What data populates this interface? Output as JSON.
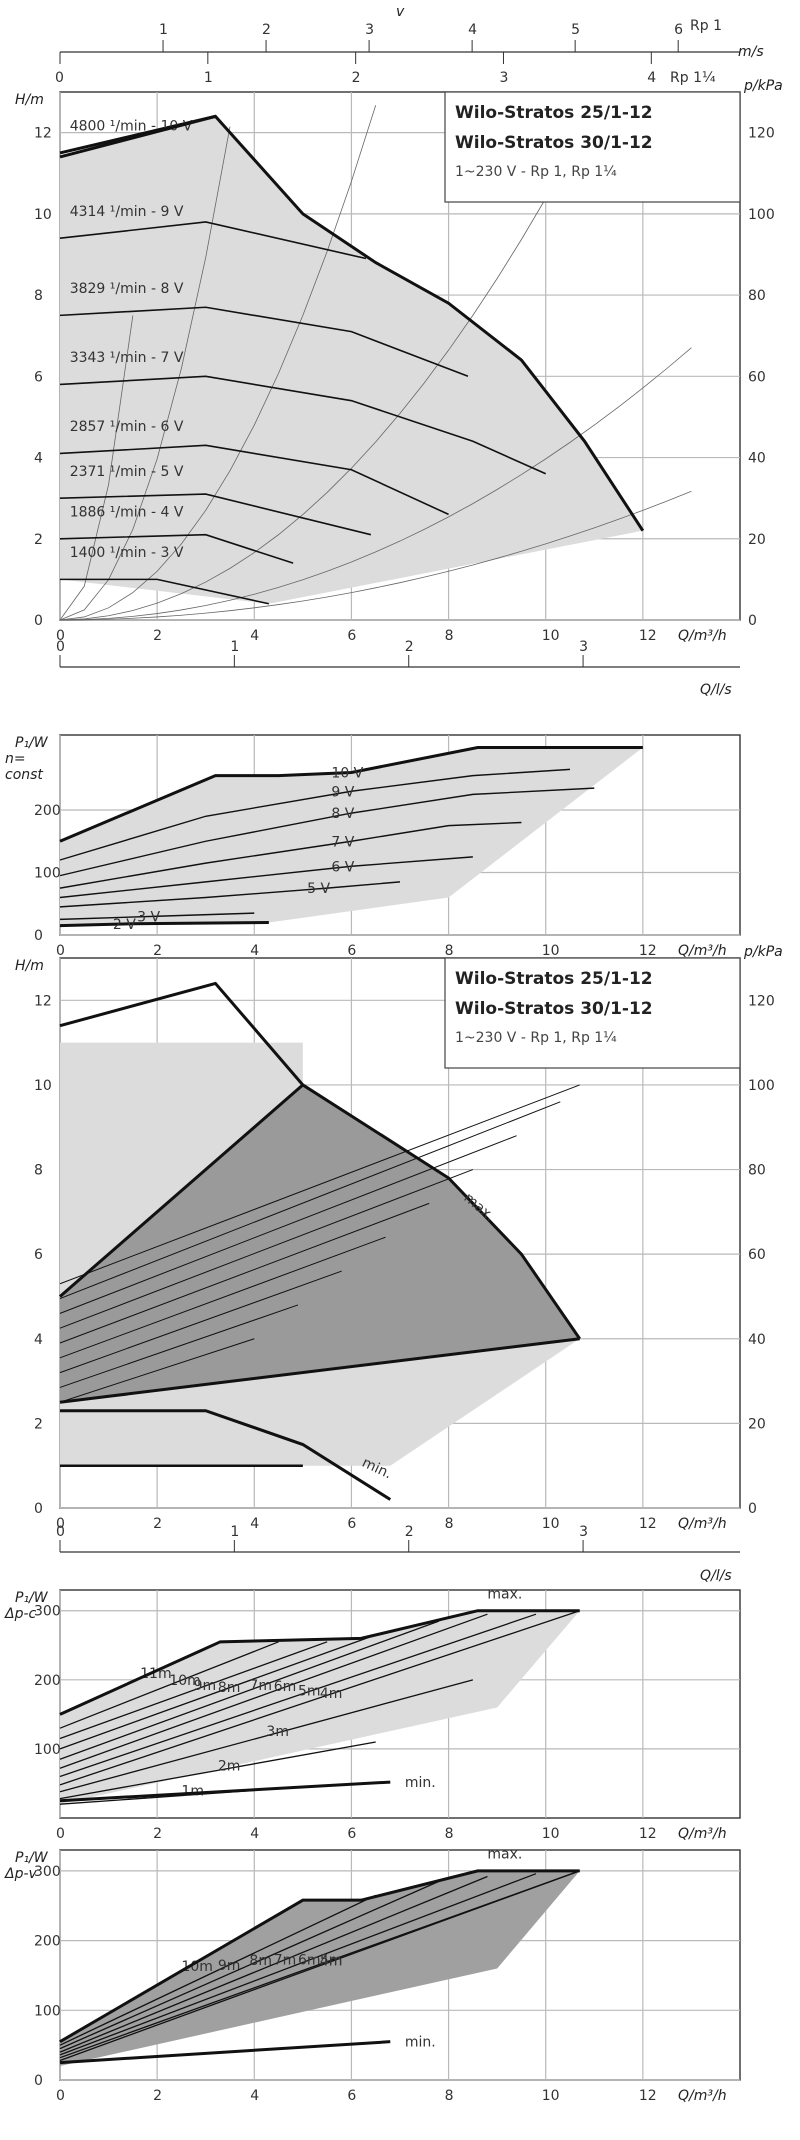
{
  "pump": {
    "title1": "Wilo-Stratos 25/1-12",
    "title2": "Wilo-Stratos 30/1-12",
    "subtitle": "1~230 V - Rp 1, Rp 1¼"
  },
  "top_scales": {
    "v_label": "v",
    "v_unit": "m/s",
    "rp1_label": "Rp 1",
    "rp114_label": "Rp 1¼",
    "rp1_ticks": [
      "1",
      "2",
      "3",
      "4",
      "5",
      "6"
    ],
    "rp114_ticks": [
      "0",
      "1",
      "2",
      "3",
      "4"
    ],
    "top_zero": "0"
  },
  "panel_ls_1": {
    "label": "Q/l/s",
    "ticks": [
      "0",
      "1",
      "2",
      "3"
    ]
  },
  "panel_ls_2": {
    "label": "Q/l/s",
    "ticks": [
      "0",
      "1",
      "2",
      "3"
    ]
  },
  "chart_data": [
    {
      "id": "head_n_const",
      "type": "line",
      "xlabel": "Q/m³/h",
      "ylabel": "H/m",
      "y2label": "p/kPa",
      "xlim": [
        0,
        14
      ],
      "ylim": [
        0,
        13
      ],
      "xticks": [
        "0",
        "2",
        "4",
        "6",
        "8",
        "10",
        "12"
      ],
      "yticks": [
        "0",
        "2",
        "4",
        "6",
        "8",
        "10",
        "12"
      ],
      "y2ticks": [
        "0",
        "20",
        "40",
        "60",
        "80",
        "100",
        "120"
      ],
      "series": [
        {
          "name": "4800 ¹/min - 10 V",
          "x": [
            0,
            3.2
          ],
          "y": [
            11.5,
            12.4
          ]
        },
        {
          "name": "4314 ¹/min - 9 V",
          "x": [
            0,
            3,
            6.3
          ],
          "y": [
            9.4,
            9.8,
            8.9
          ]
        },
        {
          "name": "3829 ¹/min - 8 V",
          "x": [
            0,
            3,
            6,
            8.4
          ],
          "y": [
            7.5,
            7.7,
            7.1,
            6.0
          ]
        },
        {
          "name": "3343 ¹/min - 7 V",
          "x": [
            0,
            3,
            6,
            8.5,
            10
          ],
          "y": [
            5.8,
            6.0,
            5.4,
            4.4,
            3.6
          ]
        },
        {
          "name": "2857 ¹/min - 6 V",
          "x": [
            0,
            3,
            6,
            8
          ],
          "y": [
            4.1,
            4.3,
            3.7,
            2.6
          ]
        },
        {
          "name": "2371 ¹/min - 5 V",
          "x": [
            0,
            3,
            6.4
          ],
          "y": [
            3.0,
            3.1,
            2.1
          ]
        },
        {
          "name": "1886 ¹/min - 4 V",
          "x": [
            0,
            3,
            4.8
          ],
          "y": [
            2.0,
            2.1,
            1.4
          ]
        },
        {
          "name": "1400 ¹/min - 3 V",
          "x": [
            0,
            2,
            4.3
          ],
          "y": [
            1.0,
            1.0,
            0.4
          ]
        }
      ],
      "max_curve": {
        "x": [
          0,
          3.2,
          5.0,
          6.5,
          8.0,
          9.5,
          10.8,
          12
        ],
        "y": [
          11.4,
          12.4,
          10.0,
          8.8,
          7.8,
          6.4,
          4.4,
          2.2
        ]
      }
    },
    {
      "id": "power_n_const",
      "type": "line",
      "xlabel": "Q/m³/h",
      "ylabel": "P₁/W",
      "ylabel2": "n=",
      "ylabel3": "const",
      "xlim": [
        0,
        14
      ],
      "ylim": [
        0,
        320
      ],
      "xticks": [
        "0",
        "2",
        "4",
        "6",
        "8",
        "10",
        "12"
      ],
      "yticks": [
        "0",
        "100",
        "200"
      ],
      "series": [
        {
          "name": "10 V",
          "x": [
            0,
            3.2,
            4.5,
            6,
            8.6,
            12
          ],
          "y": [
            150,
            255,
            255,
            260,
            300,
            300
          ]
        },
        {
          "name": "9 V",
          "x": [
            0,
            3,
            6,
            8.5,
            10.5
          ],
          "y": [
            120,
            190,
            230,
            255,
            265
          ]
        },
        {
          "name": "8 V",
          "x": [
            0,
            3,
            6,
            8.5,
            11
          ],
          "y": [
            95,
            150,
            195,
            225,
            235
          ]
        },
        {
          "name": "7 V",
          "x": [
            0,
            3,
            6,
            8,
            9.5
          ],
          "y": [
            75,
            115,
            150,
            175,
            180
          ]
        },
        {
          "name": "6 V",
          "x": [
            0,
            3,
            6,
            8.5
          ],
          "y": [
            60,
            85,
            110,
            125
          ]
        },
        {
          "name": "5 V",
          "x": [
            0,
            3,
            5.5,
            7
          ],
          "y": [
            45,
            60,
            75,
            85
          ]
        },
        {
          "name": "3 V",
          "x": [
            0,
            2,
            4
          ],
          "y": [
            25,
            30,
            35
          ]
        },
        {
          "name": "2 V",
          "x": [
            0,
            1.5,
            4.3
          ],
          "y": [
            15,
            18,
            20
          ]
        }
      ]
    },
    {
      "id": "head_dp_modes",
      "type": "area",
      "xlabel": "Q/m³/h",
      "ylabel": "H/m",
      "y2label": "p/kPa",
      "xlim": [
        0,
        14
      ],
      "ylim": [
        0,
        13
      ],
      "xticks": [
        "0",
        "2",
        "4",
        "6",
        "8",
        "10",
        "12"
      ],
      "yticks": [
        "0",
        "2",
        "4",
        "6",
        "8",
        "10",
        "12"
      ],
      "y2ticks": [
        "0",
        "20",
        "40",
        "60",
        "80",
        "100",
        "120"
      ],
      "annotations": [
        "max.",
        "min."
      ],
      "max_curve": {
        "x": [
          0,
          3.2,
          5.0,
          6.5,
          8.0,
          9.5,
          10.7
        ],
        "y": [
          11.4,
          12.4,
          10.0,
          8.9,
          7.8,
          6.0,
          4.0
        ]
      },
      "min_curve": {
        "x": [
          0,
          3,
          5,
          6.8
        ],
        "y": [
          2.3,
          2.3,
          1.5,
          0.2
        ]
      },
      "dpv_max": {
        "x": [
          0,
          5.0
        ],
        "y": [
          5.0,
          10.0
        ]
      },
      "dpv_min": {
        "x": [
          0,
          10.7
        ],
        "y": [
          2.5,
          4.0
        ]
      }
    },
    {
      "id": "power_dp_c",
      "type": "line",
      "xlabel": "Q/m³/h",
      "ylabel": "P₁/W",
      "ylabel2": "Δp-c",
      "xlim": [
        0,
        14
      ],
      "ylim": [
        0,
        330
      ],
      "xticks": [
        "0",
        "2",
        "4",
        "6",
        "8",
        "10",
        "12"
      ],
      "yticks": [
        "100",
        "200",
        "300"
      ],
      "annotations": [
        "max.",
        "min."
      ],
      "series": [
        {
          "name": "11m",
          "x": [
            0,
            3.3
          ],
          "y": [
            150,
            255
          ]
        },
        {
          "name": "10m",
          "x": [
            0,
            4.5
          ],
          "y": [
            130,
            255
          ]
        },
        {
          "name": "9m",
          "x": [
            0,
            5.5
          ],
          "y": [
            115,
            255
          ]
        },
        {
          "name": "8m",
          "x": [
            0,
            6.5
          ],
          "y": [
            100,
            265
          ]
        },
        {
          "name": "7m",
          "x": [
            0,
            7.8
          ],
          "y": [
            85,
            285
          ]
        },
        {
          "name": "6m",
          "x": [
            0,
            8.8
          ],
          "y": [
            72,
            295
          ]
        },
        {
          "name": "5m",
          "x": [
            0,
            9.8
          ],
          "y": [
            60,
            295
          ]
        },
        {
          "name": "4m",
          "x": [
            0,
            10.7
          ],
          "y": [
            48,
            300
          ]
        },
        {
          "name": "3m",
          "x": [
            0,
            8.5
          ],
          "y": [
            38,
            200
          ]
        },
        {
          "name": "2m",
          "x": [
            0,
            6.5
          ],
          "y": [
            28,
            110
          ]
        },
        {
          "name": "1m",
          "x": [
            0,
            5
          ],
          "y": [
            20,
            45
          ]
        }
      ],
      "max_curve": {
        "x": [
          0,
          3.3,
          6.2,
          8.6,
          10.7
        ],
        "y": [
          150,
          255,
          260,
          300,
          300
        ]
      },
      "min_curve": {
        "x": [
          0,
          6.8
        ],
        "y": [
          25,
          52
        ]
      }
    },
    {
      "id": "power_dp_v",
      "type": "line",
      "xlabel": "Q/m³/h",
      "ylabel": "P₁/W",
      "ylabel2": "Δp-v",
      "xlim": [
        0,
        14
      ],
      "ylim": [
        0,
        330
      ],
      "xticks": [
        "0",
        "2",
        "4",
        "6",
        "8",
        "10",
        "12"
      ],
      "yticks": [
        "0",
        "100",
        "200",
        "300"
      ],
      "annotations": [
        "max.",
        "min."
      ],
      "series": [
        {
          "name": "10m",
          "x": [
            0,
            5
          ],
          "y": [
            55,
            258
          ]
        },
        {
          "name": "9m",
          "x": [
            0,
            6.5
          ],
          "y": [
            50,
            265
          ]
        },
        {
          "name": "8m",
          "x": [
            0,
            7.8
          ],
          "y": [
            45,
            285
          ]
        },
        {
          "name": "7m",
          "x": [
            0,
            8.8
          ],
          "y": [
            40,
            292
          ]
        },
        {
          "name": "6m",
          "x": [
            0,
            9.8
          ],
          "y": [
            36,
            296
          ]
        },
        {
          "name": "5m",
          "x": [
            0,
            10.7
          ],
          "y": [
            32,
            300
          ]
        },
        {
          "name": "4m",
          "x": [
            0,
            10.7
          ],
          "y": [
            28,
            300
          ]
        }
      ],
      "max_curve": {
        "x": [
          0,
          5,
          6.2,
          8.6,
          10.7
        ],
        "y": [
          55,
          258,
          258,
          300,
          300
        ]
      },
      "min_curve": {
        "x": [
          0,
          6.8
        ],
        "y": [
          25,
          55
        ]
      }
    }
  ]
}
